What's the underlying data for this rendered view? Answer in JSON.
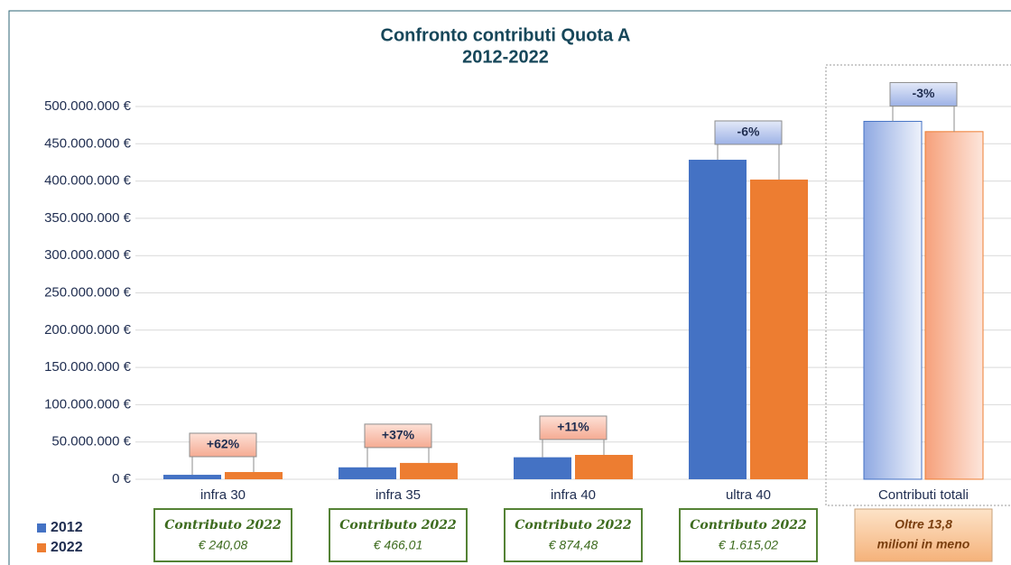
{
  "chart_data": {
    "type": "bar",
    "title": "Confronto contributi Quota A",
    "subtitle": "2012-2022",
    "categories": [
      "infra 30",
      "infra 35",
      "infra 40",
      "ultra 40",
      "Contributi totali"
    ],
    "series": [
      {
        "name": "2012",
        "color": "#4472c4",
        "values": [
          6000000,
          16000000,
          29500000,
          428600000,
          480100000
        ]
      },
      {
        "name": "2022",
        "color": "#ed7d31",
        "values": [
          9700000,
          21900000,
          32700000,
          402000000,
          466300000
        ]
      }
    ],
    "change_labels": [
      "+62%",
      "+37%",
      "+11%",
      "-6%",
      "-3%"
    ],
    "notes": [
      {
        "title": "Contributo 2022",
        "value": "€ 240,08"
      },
      {
        "title": "Contributo 2022",
        "value": "€ 466,01"
      },
      {
        "title": "Contributo 2022",
        "value": "€ 874,48"
      },
      {
        "title": "Contributo 2022",
        "value": "€ 1.615,02"
      },
      {
        "lines": [
          "Oltre 13,8",
          "milioni in meno"
        ]
      }
    ],
    "ylim": [
      0,
      500000000
    ],
    "yticks": [
      {
        "value": 0,
        "label": "0 €"
      },
      {
        "value": 50000000,
        "label": "50.000.000 €"
      },
      {
        "value": 100000000,
        "label": "100.000.000 €"
      },
      {
        "value": 150000000,
        "label": "150.000.000 €"
      },
      {
        "value": 200000000,
        "label": "200.000.000 €"
      },
      {
        "value": 250000000,
        "label": "250.000.000 €"
      },
      {
        "value": 300000000,
        "label": "300.000.000 €"
      },
      {
        "value": 350000000,
        "label": "350.000.000 €"
      },
      {
        "value": 400000000,
        "label": "400.000.000 €"
      },
      {
        "value": 450000000,
        "label": "450.000.000 €"
      },
      {
        "value": 500000000,
        "label": "500.000.000 €"
      }
    ],
    "grid": true
  }
}
